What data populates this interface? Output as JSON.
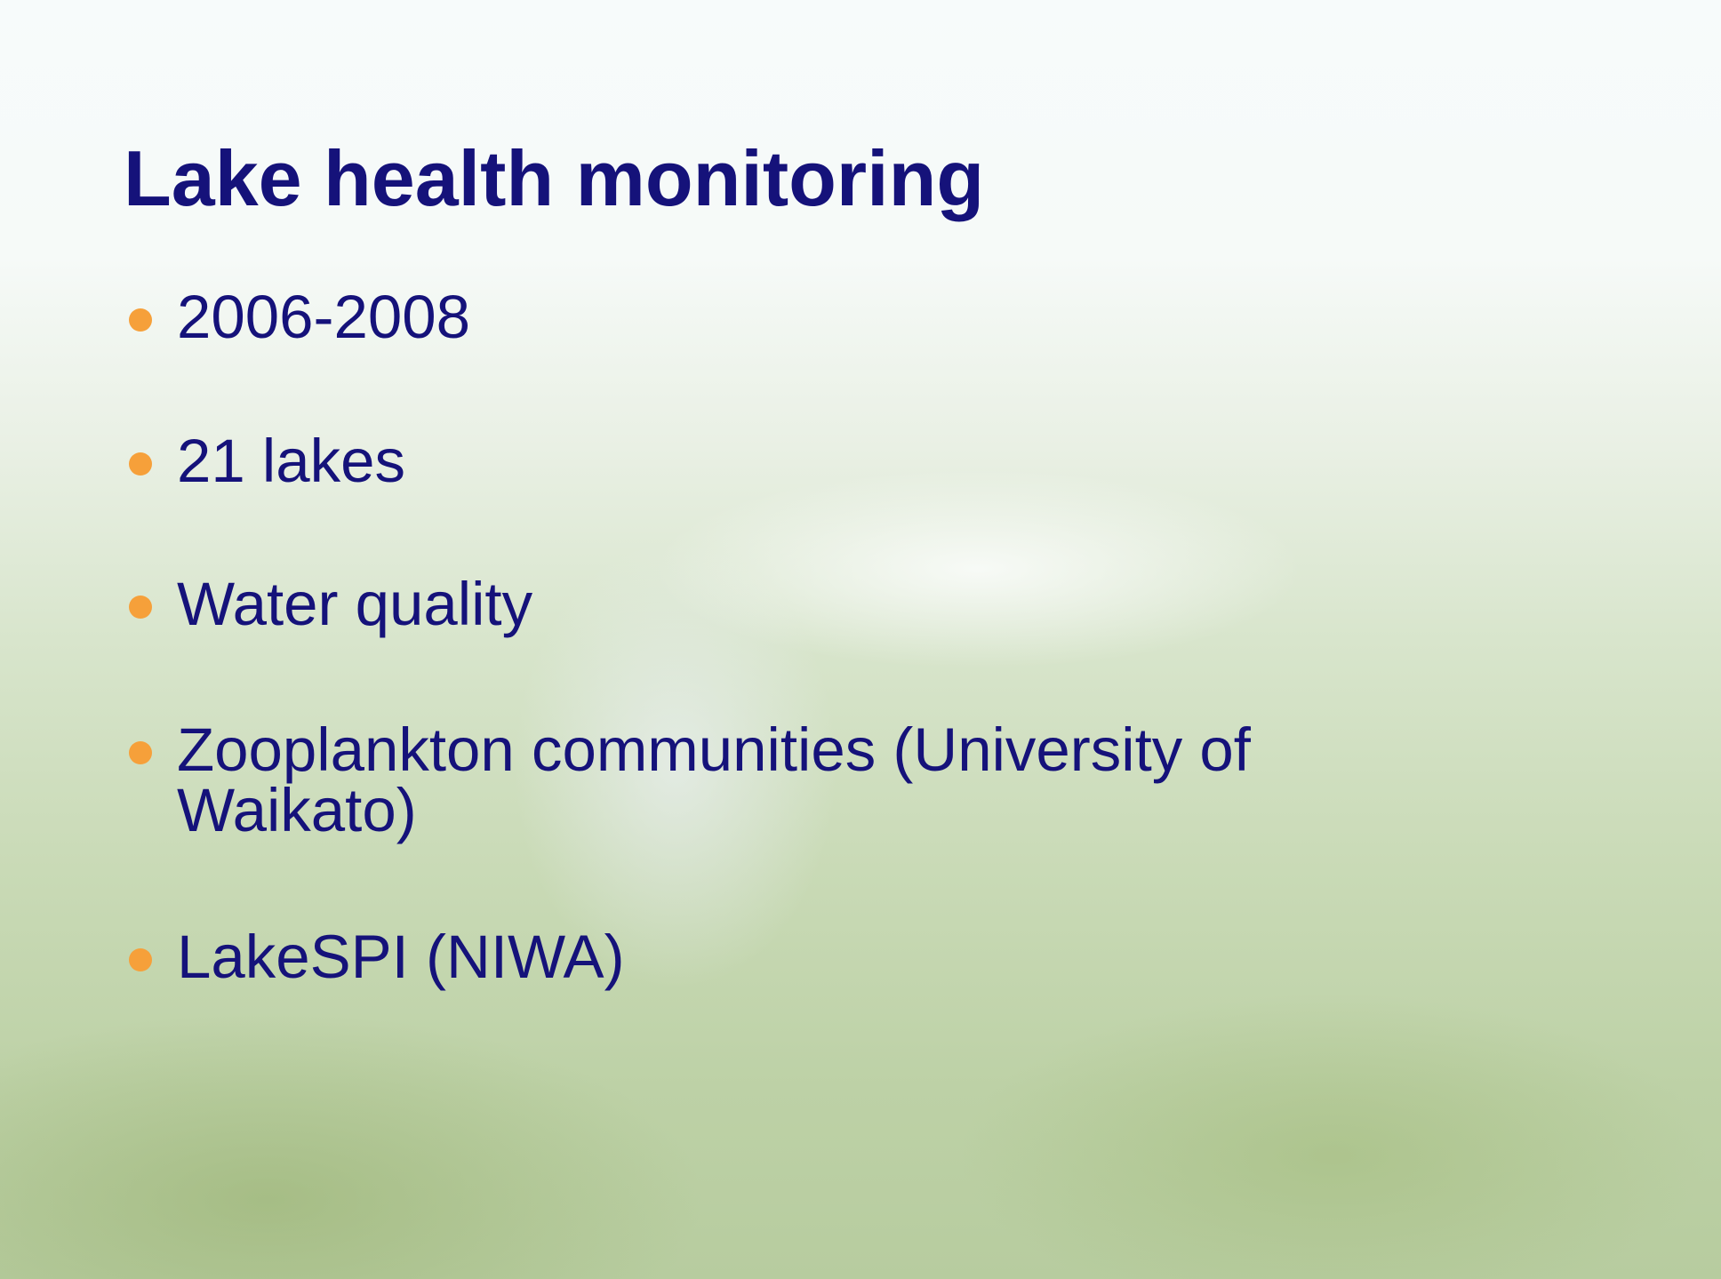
{
  "title": "Lake health monitoring",
  "bullets": [
    "2006-2008",
    "21 lakes",
    "Water quality",
    "Zooplankton communities (University of Waikato)",
    "LakeSPI (NIWA)"
  ]
}
